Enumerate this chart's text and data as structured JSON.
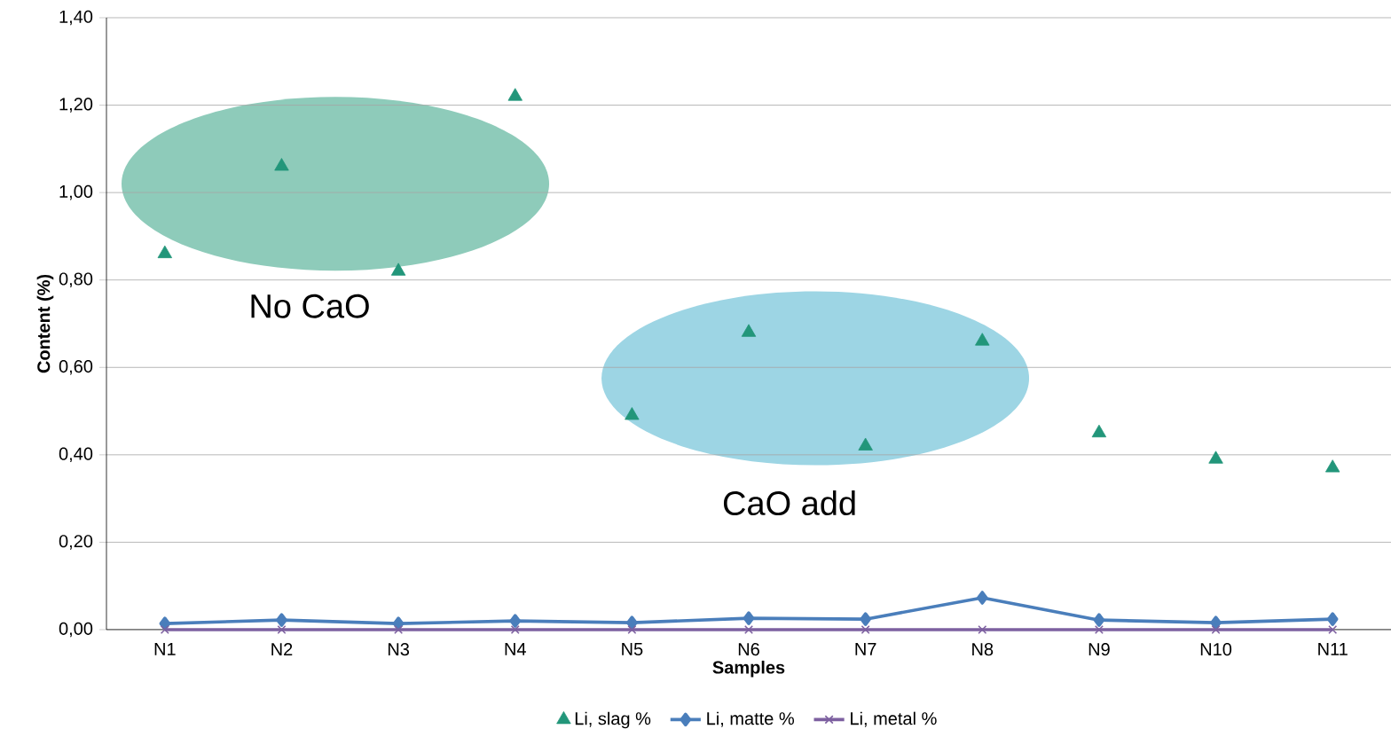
{
  "chart_data": {
    "type": "line",
    "xlabel": "Samples",
    "ylabel": "Content (%)",
    "categories": [
      "N1",
      "N2",
      "N3",
      "N4",
      "N5",
      "N6",
      "N7",
      "N8",
      "N9",
      "N10",
      "N11"
    ],
    "series": [
      {
        "name": "Li, slag %",
        "type": "scatter",
        "marker": "triangle",
        "color": "#22967a",
        "values": [
          0.86,
          1.06,
          0.82,
          1.22,
          0.49,
          0.68,
          0.42,
          0.66,
          0.45,
          0.39,
          0.37
        ]
      },
      {
        "name": "Li, matte %",
        "marker": "diamond",
        "color": "#4a7ebb",
        "values": [
          0.014,
          0.022,
          0.014,
          0.02,
          0.016,
          0.026,
          0.024,
          0.073,
          0.022,
          0.016,
          0.024
        ]
      },
      {
        "name": "Li, metal %",
        "marker": "cross",
        "color": "#7d60a0",
        "values": [
          0,
          0,
          0,
          0,
          0,
          0,
          0,
          0,
          0,
          0,
          0
        ]
      }
    ],
    "ylim": [
      0,
      1.4
    ],
    "yticks": [
      {
        "value": 0,
        "label": "0,00"
      },
      {
        "value": 0.2,
        "label": "0,20"
      },
      {
        "value": 0.4,
        "label": "0,40"
      },
      {
        "value": 0.6,
        "label": "0,60"
      },
      {
        "value": 0.8,
        "label": "0,80"
      },
      {
        "value": 1.0,
        "label": "1,00"
      },
      {
        "value": 1.2,
        "label": "1,20"
      },
      {
        "value": 1.4,
        "label": "1,40"
      }
    ],
    "grid": "y",
    "legend": "bottom",
    "annotations": [
      "No CaO",
      "CaO add"
    ]
  }
}
